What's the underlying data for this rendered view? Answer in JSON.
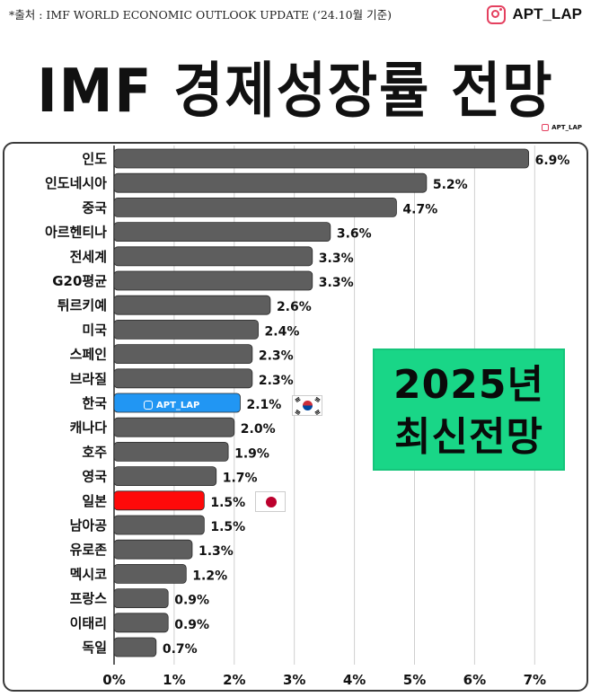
{
  "header": {
    "source": "*출처 : IMF WORLD ECONOMIC OUTLOOK UPDATE (‘24.10월 기준)",
    "brand": "APT_LAP",
    "title": "IMF 경제성장률 전망",
    "small_brand": "APT_LAP"
  },
  "badge": {
    "line1": "2025년",
    "line2": "최신전망"
  },
  "bar_watermark": "APT_LAP",
  "colors": {
    "bar_default": "#5e5e5e",
    "bar_korea": "#2196f3",
    "bar_japan": "#ff0a0a",
    "badge": "#19d687"
  },
  "icons": {
    "brand": "instagram-icon",
    "korea": "korea-flag-icon",
    "japan": "japan-flag-icon"
  },
  "chart_data": {
    "type": "bar",
    "orientation": "horizontal",
    "title": "IMF 경제성장률 전망",
    "categories": [
      "인도",
      "인도네시아",
      "중국",
      "아르헨티나",
      "전세계",
      "G20평균",
      "튀르키예",
      "미국",
      "스페인",
      "브라질",
      "한국",
      "캐나다",
      "호주",
      "영국",
      "일본",
      "남아공",
      "유로존",
      "멕시코",
      "프랑스",
      "이태리",
      "독일"
    ],
    "values": [
      6.9,
      5.2,
      4.7,
      3.6,
      3.3,
      3.3,
      2.6,
      2.4,
      2.3,
      2.3,
      2.1,
      2.0,
      1.9,
      1.7,
      1.5,
      1.5,
      1.3,
      1.2,
      0.9,
      0.9,
      0.7
    ],
    "value_labels": [
      "6.9%",
      "5.2%",
      "4.7%",
      "3.6%",
      "3.3%",
      "3.3%",
      "2.6%",
      "2.4%",
      "2.3%",
      "2.3%",
      "2.1%",
      "2.0%",
      "1.9%",
      "1.7%",
      "1.5%",
      "1.5%",
      "1.3%",
      "1.2%",
      "0.9%",
      "0.9%",
      "0.7%"
    ],
    "highlight": {
      "한국": "#2196f3",
      "일본": "#ff0a0a"
    },
    "xlim": [
      0,
      7
    ],
    "xticks": [
      "0%",
      "1%",
      "2%",
      "3%",
      "4%",
      "5%",
      "6%",
      "7%"
    ],
    "grid": true
  }
}
